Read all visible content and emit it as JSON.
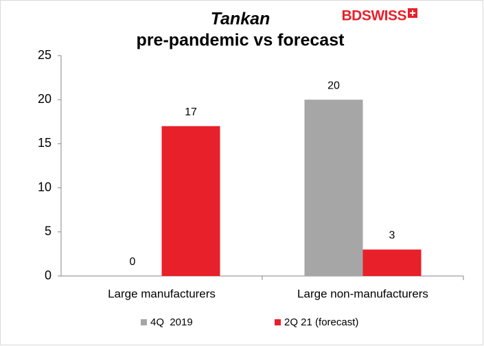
{
  "chart_data": {
    "type": "bar",
    "title": "Tankan",
    "subtitle": "pre-pandemic vs forecast",
    "logo": "BDSWISS",
    "categories": [
      "Large manufacturers",
      "Large non-manufacturers"
    ],
    "series": [
      {
        "name": "4Q  2019",
        "color": "#a6a6a6",
        "values": [
          0,
          20
        ]
      },
      {
        "name": "2Q 21 (forecast)",
        "color": "#e8202a",
        "values": [
          17,
          3
        ]
      }
    ],
    "ylim": [
      0,
      25
    ],
    "yticks": [
      0,
      5,
      10,
      15,
      20,
      25
    ],
    "grid": false,
    "legend": "bottom"
  }
}
